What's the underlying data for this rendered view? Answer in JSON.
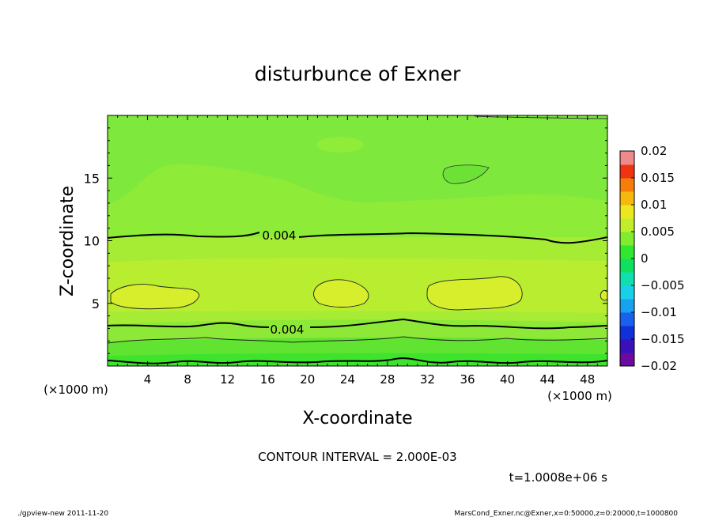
{
  "chart_data": {
    "type": "heatmap",
    "title": "disturbunce of Exner",
    "xlabel": "X-coordinate",
    "ylabel": "Z-coordinate",
    "x_unit_left": "(×1000 m)",
    "x_unit_right": "(×1000 m)",
    "xlim": [
      0,
      50
    ],
    "ylim": [
      0,
      20
    ],
    "x_ticks": [
      4,
      8,
      12,
      16,
      20,
      24,
      28,
      32,
      36,
      40,
      44,
      48
    ],
    "y_ticks": [
      5,
      10,
      15
    ],
    "colorbar": {
      "min": -0.02,
      "max": 0.02,
      "tick_values": [
        0.02,
        0.015,
        0.01,
        0.005,
        0,
        -0.005,
        -0.01,
        -0.015,
        -0.02
      ],
      "tick_labels": [
        "0.02",
        "0.015",
        "0.01",
        "0.005",
        "0",
        "−0.005",
        "−0.01",
        "−0.015",
        "−0.02"
      ],
      "colors": [
        "#6a0aa0",
        "#3a10b8",
        "#1030d8",
        "#1a60ee",
        "#1aa0f0",
        "#18d0e8",
        "#10e0b0",
        "#10e060",
        "#30e830",
        "#80ec30",
        "#c0ee2c",
        "#ece820",
        "#f5b80e",
        "#f57d0a",
        "#f03412",
        "#f08a8a"
      ]
    },
    "contour_levels": [
      {
        "value": 0.004,
        "label": "0.004",
        "label_x": 17.5,
        "label_y": 10.4
      },
      {
        "value": 0.004,
        "label": "0.004",
        "label_x": 17.5,
        "label_y": 2.9
      }
    ],
    "contour_interval": 0.002
  },
  "annotations": {
    "contour_interval_text": "CONTOUR INTERVAL = 2.000E-03",
    "time_text": "t=1.0008e+06 s",
    "footer_left": "./gpview-new   2011-11-20",
    "footer_right": "MarsCond_Exner.nc@Exner,x=0:50000,z=0:20000,t=1000800"
  }
}
